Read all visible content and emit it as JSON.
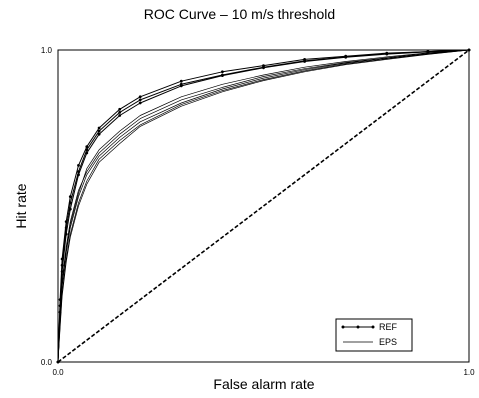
{
  "chart_data": {
    "type": "line",
    "title": "ROC Curve – 10 m/s threshold",
    "xlabel": "False alarm rate",
    "ylabel": "Hit rate",
    "xlim": [
      0.0,
      1.0
    ],
    "ylim": [
      0.0,
      1.0
    ],
    "x_tick_labels": [
      "0.0",
      "1.0"
    ],
    "y_tick_labels": [
      "0.0",
      "1.0"
    ],
    "grid": false,
    "legend_position": "bottom-right",
    "legend": [
      {
        "label": "REF",
        "marker": "dot"
      },
      {
        "label": "EPS",
        "marker": "none"
      }
    ],
    "series": [
      {
        "name": "REF",
        "marker": "dot",
        "values": [
          [
            0,
            0
          ],
          [
            0.005,
            0.2
          ],
          [
            0.01,
            0.33
          ],
          [
            0.02,
            0.45
          ],
          [
            0.03,
            0.53
          ],
          [
            0.05,
            0.63
          ],
          [
            0.07,
            0.69
          ],
          [
            0.1,
            0.75
          ],
          [
            0.15,
            0.81
          ],
          [
            0.2,
            0.85
          ],
          [
            0.3,
            0.9
          ],
          [
            0.4,
            0.93
          ],
          [
            0.5,
            0.95
          ],
          [
            0.6,
            0.97
          ],
          [
            0.7,
            0.98
          ],
          [
            0.8,
            0.99
          ],
          [
            0.9,
            0.995
          ],
          [
            1,
            1
          ]
        ]
      },
      {
        "name": "REF",
        "marker": "dot",
        "values": [
          [
            0,
            0
          ],
          [
            0.005,
            0.18
          ],
          [
            0.01,
            0.31
          ],
          [
            0.02,
            0.43
          ],
          [
            0.03,
            0.51
          ],
          [
            0.05,
            0.61
          ],
          [
            0.07,
            0.68
          ],
          [
            0.1,
            0.74
          ],
          [
            0.15,
            0.8
          ],
          [
            0.2,
            0.84
          ],
          [
            0.3,
            0.89
          ],
          [
            0.4,
            0.92
          ],
          [
            0.5,
            0.945
          ],
          [
            0.6,
            0.965
          ],
          [
            0.7,
            0.978
          ],
          [
            0.8,
            0.988
          ],
          [
            0.9,
            0.995
          ],
          [
            1,
            1
          ]
        ]
      },
      {
        "name": "REF",
        "marker": "dot",
        "values": [
          [
            0,
            0
          ],
          [
            0.005,
            0.16
          ],
          [
            0.01,
            0.29
          ],
          [
            0.02,
            0.41
          ],
          [
            0.03,
            0.49
          ],
          [
            0.05,
            0.6
          ],
          [
            0.07,
            0.67
          ],
          [
            0.1,
            0.73
          ],
          [
            0.15,
            0.79
          ],
          [
            0.2,
            0.83
          ],
          [
            0.3,
            0.885
          ],
          [
            0.4,
            0.918
          ],
          [
            0.5,
            0.943
          ],
          [
            0.6,
            0.963
          ],
          [
            0.7,
            0.977
          ],
          [
            0.8,
            0.987
          ],
          [
            0.9,
            0.994
          ],
          [
            1,
            1
          ]
        ]
      },
      {
        "name": "EPS",
        "marker": "none",
        "values": [
          [
            0,
            0
          ],
          [
            0.005,
            0.15
          ],
          [
            0.01,
            0.26
          ],
          [
            0.02,
            0.37
          ],
          [
            0.03,
            0.45
          ],
          [
            0.05,
            0.55
          ],
          [
            0.07,
            0.61
          ],
          [
            0.1,
            0.67
          ],
          [
            0.15,
            0.73
          ],
          [
            0.2,
            0.78
          ],
          [
            0.3,
            0.84
          ],
          [
            0.4,
            0.88
          ],
          [
            0.5,
            0.915
          ],
          [
            0.6,
            0.94
          ],
          [
            0.7,
            0.96
          ],
          [
            0.8,
            0.975
          ],
          [
            0.9,
            0.99
          ],
          [
            1,
            1
          ]
        ]
      },
      {
        "name": "EPS",
        "marker": "none",
        "values": [
          [
            0,
            0
          ],
          [
            0.005,
            0.13
          ],
          [
            0.01,
            0.24
          ],
          [
            0.02,
            0.35
          ],
          [
            0.03,
            0.43
          ],
          [
            0.05,
            0.53
          ],
          [
            0.07,
            0.6
          ],
          [
            0.1,
            0.66
          ],
          [
            0.15,
            0.72
          ],
          [
            0.2,
            0.77
          ],
          [
            0.3,
            0.83
          ],
          [
            0.4,
            0.875
          ],
          [
            0.5,
            0.91
          ],
          [
            0.6,
            0.937
          ],
          [
            0.7,
            0.958
          ],
          [
            0.8,
            0.974
          ],
          [
            0.9,
            0.988
          ],
          [
            1,
            1
          ]
        ]
      },
      {
        "name": "EPS",
        "marker": "none",
        "values": [
          [
            0,
            0
          ],
          [
            0.005,
            0.12
          ],
          [
            0.01,
            0.22
          ],
          [
            0.02,
            0.33
          ],
          [
            0.03,
            0.41
          ],
          [
            0.05,
            0.51
          ],
          [
            0.07,
            0.58
          ],
          [
            0.1,
            0.65
          ],
          [
            0.15,
            0.71
          ],
          [
            0.2,
            0.76
          ],
          [
            0.3,
            0.825
          ],
          [
            0.4,
            0.87
          ],
          [
            0.5,
            0.905
          ],
          [
            0.6,
            0.933
          ],
          [
            0.7,
            0.955
          ],
          [
            0.8,
            0.972
          ],
          [
            0.9,
            0.987
          ],
          [
            1,
            1
          ]
        ]
      },
      {
        "name": "EPS",
        "marker": "none",
        "values": [
          [
            0,
            0
          ],
          [
            0.005,
            0.11
          ],
          [
            0.01,
            0.21
          ],
          [
            0.02,
            0.32
          ],
          [
            0.03,
            0.4
          ],
          [
            0.05,
            0.5
          ],
          [
            0.07,
            0.57
          ],
          [
            0.1,
            0.64
          ],
          [
            0.15,
            0.7
          ],
          [
            0.2,
            0.755
          ],
          [
            0.3,
            0.82
          ],
          [
            0.4,
            0.866
          ],
          [
            0.5,
            0.902
          ],
          [
            0.6,
            0.93
          ],
          [
            0.7,
            0.953
          ],
          [
            0.8,
            0.97
          ],
          [
            0.9,
            0.986
          ],
          [
            1,
            1
          ]
        ]
      },
      {
        "name": "EPS",
        "marker": "none",
        "values": [
          [
            0,
            0
          ],
          [
            0.005,
            0.14
          ],
          [
            0.01,
            0.25
          ],
          [
            0.02,
            0.36
          ],
          [
            0.03,
            0.44
          ],
          [
            0.05,
            0.54
          ],
          [
            0.07,
            0.62
          ],
          [
            0.1,
            0.68
          ],
          [
            0.15,
            0.74
          ],
          [
            0.2,
            0.79
          ],
          [
            0.3,
            0.85
          ],
          [
            0.4,
            0.89
          ],
          [
            0.5,
            0.92
          ],
          [
            0.6,
            0.945
          ],
          [
            0.7,
            0.963
          ],
          [
            0.8,
            0.978
          ],
          [
            0.9,
            0.991
          ],
          [
            1,
            1
          ]
        ]
      }
    ],
    "reference_line": {
      "style": "dashed",
      "values": [
        [
          0,
          0
        ],
        [
          1,
          1
        ]
      ]
    }
  }
}
